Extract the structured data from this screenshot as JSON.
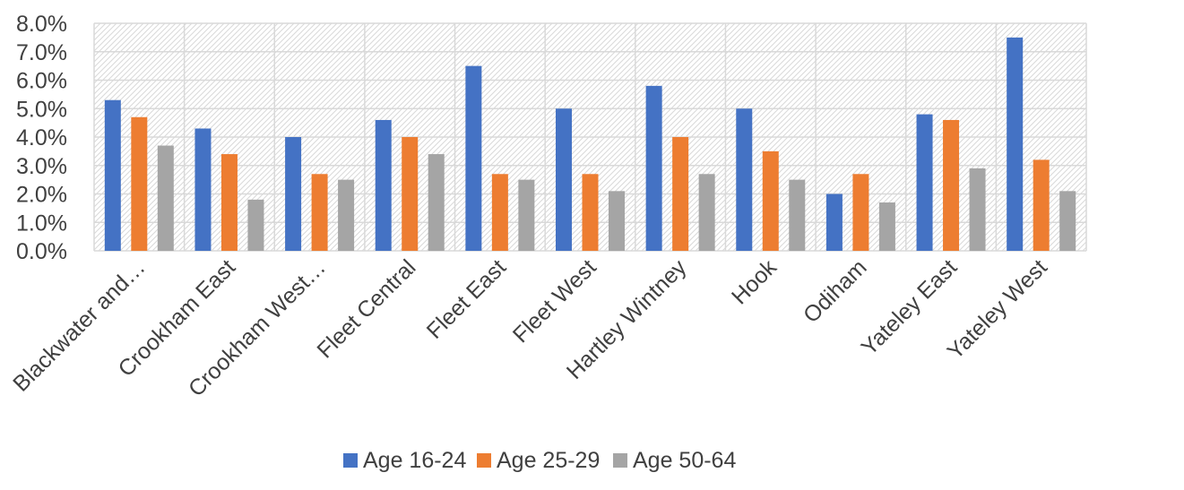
{
  "chart_data": {
    "type": "bar",
    "title": "",
    "xlabel": "",
    "ylabel": "",
    "ylim": [
      0,
      8
    ],
    "y_ticks": [
      "0.0%",
      "1.0%",
      "2.0%",
      "3.0%",
      "4.0%",
      "5.0%",
      "6.0%",
      "7.0%",
      "8.0%"
    ],
    "grid": true,
    "legend_position": "bottom",
    "categories": [
      "Blackwater and…",
      "Crookham East",
      "Crookham West…",
      "Fleet Central",
      "Fleet East",
      "Fleet West",
      "Hartley Wintney",
      "Hook",
      "Odiham",
      "Yateley East",
      "Yateley West"
    ],
    "series": [
      {
        "name": "Age 16-24",
        "color": "#4472C4",
        "values": [
          5.3,
          4.3,
          4.0,
          4.6,
          6.5,
          5.0,
          5.8,
          5.0,
          2.0,
          4.8,
          7.5
        ]
      },
      {
        "name": "Age 25-29",
        "color": "#ED7D31",
        "values": [
          4.7,
          3.4,
          2.7,
          4.0,
          2.7,
          2.7,
          4.0,
          3.5,
          2.7,
          4.6,
          3.2
        ]
      },
      {
        "name": "Age 50-64",
        "color": "#A5A5A5",
        "values": [
          3.7,
          1.8,
          2.5,
          3.4,
          2.5,
          2.1,
          2.7,
          2.5,
          1.7,
          2.9,
          2.1
        ]
      }
    ]
  }
}
